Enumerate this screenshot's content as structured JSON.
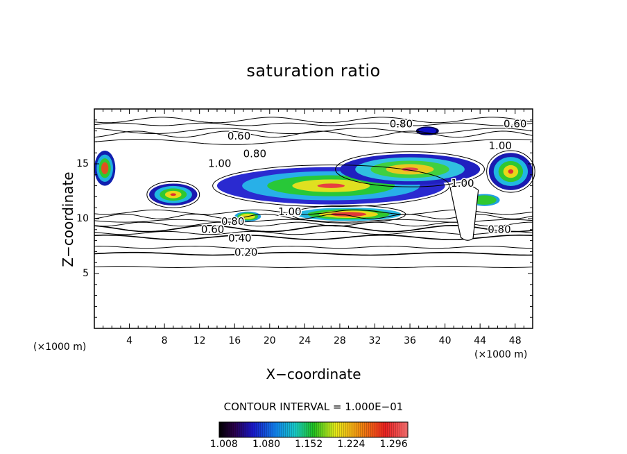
{
  "chart_data": {
    "type": "contour",
    "title": "saturation ratio",
    "xlabel": "X−coordinate",
    "ylabel": "Z−coordinate",
    "x_unit_left": "(×1000 m)",
    "x_unit_right": "(×1000 m)",
    "xlim": [
      0,
      50
    ],
    "ylim": [
      0,
      20
    ],
    "x_ticks": [
      4,
      8,
      12,
      16,
      20,
      24,
      28,
      32,
      36,
      40,
      44,
      48
    ],
    "y_ticks": [
      5,
      10,
      15
    ],
    "contour_interval_text": "CONTOUR INTERVAL = 1.000E−01",
    "contour_levels": [
      {
        "label": "0.20",
        "z": 6.8
      },
      {
        "label": "0.40",
        "z": 8.3
      },
      {
        "label": "0.60",
        "z": 9.1
      },
      {
        "label": "0.80",
        "z": 9.8
      },
      {
        "label": "1.00",
        "z": 10.6
      },
      {
        "label": "0.60",
        "z": 17.7
      },
      {
        "label": "0.80",
        "z": 18.6
      }
    ],
    "contour_labels": [
      {
        "text": "0.60",
        "x": 16.5,
        "z": 17.5
      },
      {
        "text": "0.80",
        "x": 18.3,
        "z": 15.9
      },
      {
        "text": "1.00",
        "x": 14.3,
        "z": 15.0
      },
      {
        "text": "0.80",
        "x": 35.0,
        "z": 18.6
      },
      {
        "text": "0.60",
        "x": 48.0,
        "z": 18.6
      },
      {
        "text": "1.00",
        "x": 46.3,
        "z": 16.6
      },
      {
        "text": "1.00",
        "x": 42.0,
        "z": 13.2
      },
      {
        "text": "1.00",
        "x": 22.3,
        "z": 10.6
      },
      {
        "text": "0.80",
        "x": 15.8,
        "z": 9.7
      },
      {
        "text": "0.60",
        "x": 13.5,
        "z": 9.0
      },
      {
        "text": "0.40",
        "x": 16.6,
        "z": 8.2
      },
      {
        "text": "0.20",
        "x": 17.3,
        "z": 6.9
      },
      {
        "text": "0.80",
        "x": 46.2,
        "z": 9.0
      }
    ],
    "colorbar": {
      "ticks": [
        "1.008",
        "1.080",
        "1.152",
        "1.224",
        "1.296"
      ],
      "min": 1.0,
      "max": 1.32
    }
  }
}
